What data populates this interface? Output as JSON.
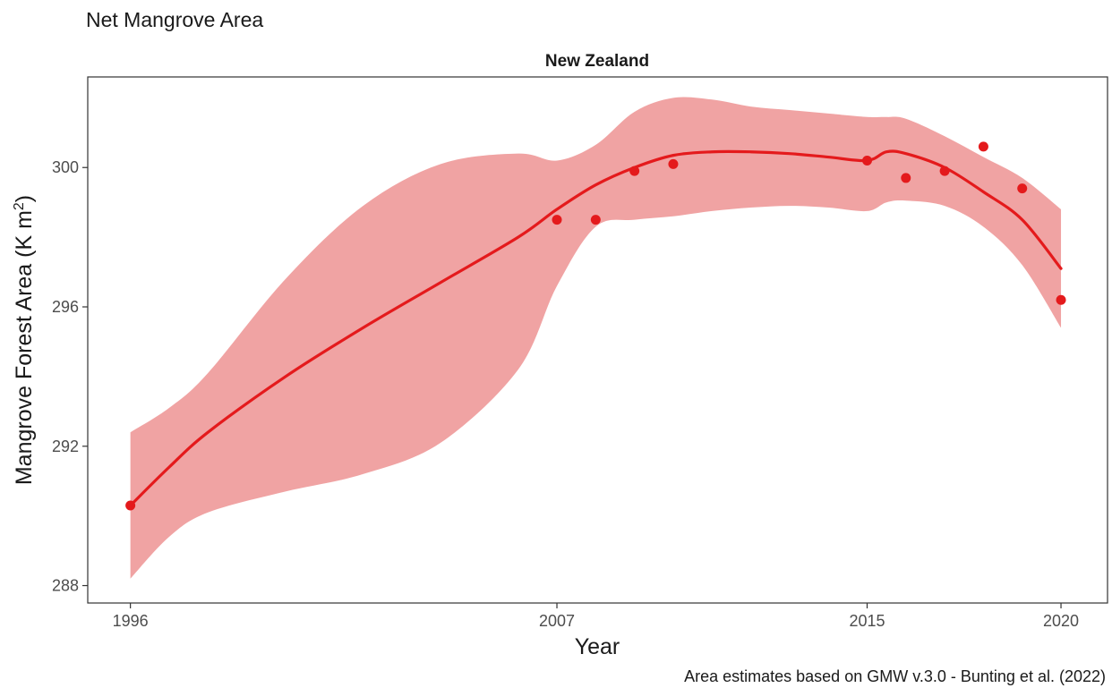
{
  "chart_data": {
    "type": "line",
    "title": "Net Mangrove Area",
    "subtitle": "New Zealand",
    "xlabel": "Year",
    "ylabel_main": "Mangrove Forest Area (K m",
    "ylabel_sup": "2",
    "ylabel_close": ")",
    "caption": "Area estimates based on GMW v.3.0 - Bunting et al. (2022)",
    "xlim": [
      1994.9,
      2021.2
    ],
    "ylim": [
      287.5,
      302.6
    ],
    "x_ticks": [
      1996,
      2007,
      2015,
      2020
    ],
    "y_ticks": [
      288,
      292,
      296,
      300
    ],
    "grid": false,
    "colors": {
      "points": "#e41a1c",
      "smooth_line": "#e41a1c",
      "ribbon": "#f0a3a3",
      "panel_border": "#333333",
      "tick": "#333333"
    },
    "series": [
      {
        "type": "scatter",
        "x": [
          1996,
          2007,
          2008,
          2009,
          2010,
          2015,
          2016,
          2017,
          2018,
          2019,
          2020
        ],
        "y": [
          290.3,
          298.5,
          298.5,
          299.9,
          300.1,
          300.2,
          299.7,
          299.9,
          300.6,
          299.4,
          296.2
        ]
      },
      {
        "type": "smooth",
        "x": [
          1996,
          1997,
          1998,
          2000,
          2002,
          2004,
          2006,
          2007,
          2008,
          2009,
          2010,
          2011,
          2012,
          2013,
          2014,
          2015,
          2015.5,
          2016,
          2017,
          2018,
          2019,
          2020
        ],
        "y": [
          290.3,
          291.4,
          292.4,
          294.0,
          295.4,
          296.7,
          298.0,
          298.8,
          299.5,
          300.0,
          300.35,
          300.45,
          300.45,
          300.4,
          300.3,
          300.2,
          300.45,
          300.4,
          300.0,
          299.3,
          298.5,
          297.1
        ],
        "lower": [
          288.2,
          289.4,
          290.1,
          290.7,
          291.2,
          292.1,
          294.2,
          296.6,
          298.3,
          298.5,
          298.6,
          298.75,
          298.85,
          298.9,
          298.85,
          298.75,
          299.0,
          299.05,
          298.9,
          298.3,
          297.2,
          295.4
        ],
        "upper": [
          292.4,
          293.1,
          294.1,
          296.8,
          298.9,
          300.1,
          300.4,
          300.2,
          300.65,
          301.6,
          302.0,
          301.95,
          301.75,
          301.65,
          301.55,
          301.45,
          301.45,
          301.4,
          300.9,
          300.3,
          299.7,
          298.8
        ]
      }
    ]
  }
}
